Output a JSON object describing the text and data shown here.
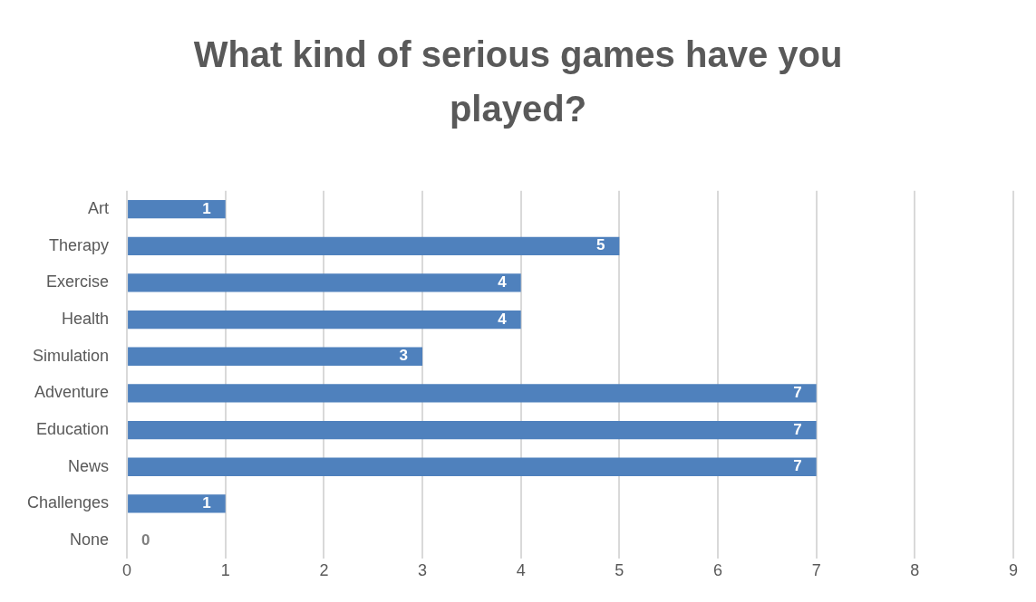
{
  "chart_data": {
    "type": "bar",
    "orientation": "horizontal",
    "title": "What kind of serious games have you played?",
    "categories": [
      "Art",
      "Therapy",
      "Exercise",
      "Health",
      "Simulation",
      "Adventure",
      "Education",
      "News",
      "Challenges",
      "None"
    ],
    "values": [
      1,
      5,
      4,
      4,
      3,
      7,
      7,
      7,
      1,
      0
    ],
    "color": "#4f81bd",
    "xlim": [
      0,
      9
    ],
    "xticks": [
      0,
      1,
      2,
      3,
      4,
      5,
      6,
      7,
      8,
      9
    ],
    "grid": "x",
    "data_labels": true
  }
}
